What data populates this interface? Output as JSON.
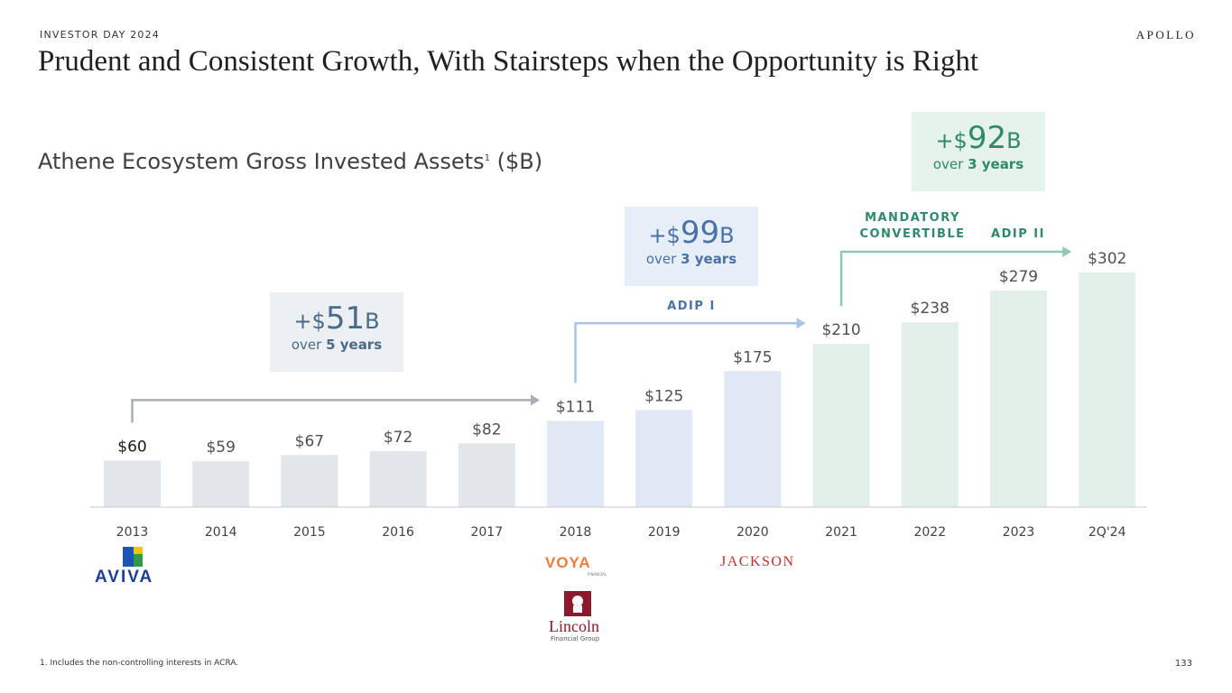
{
  "header": {
    "eyebrow": "INVESTOR DAY 2024",
    "brand": "APOLLO"
  },
  "title": "Prudent and Consistent Growth, With Stairsteps when the Opportunity is Right",
  "subtitle": {
    "text": "Athene Ecosystem Gross Invested Assets",
    "footnote_ref": "1",
    "unit": " ($B)"
  },
  "chart_data": {
    "type": "bar",
    "title": "Athene Ecosystem Gross Invested Assets ($B)",
    "categories": [
      "2013",
      "2014",
      "2015",
      "2016",
      "2017",
      "2018",
      "2019",
      "2020",
      "2021",
      "2022",
      "2023",
      "2Q'24"
    ],
    "values": [
      60,
      59,
      67,
      72,
      82,
      111,
      125,
      175,
      210,
      238,
      279,
      302
    ],
    "labels": [
      "$60",
      "$59",
      "$67",
      "$72",
      "$82",
      "$111",
      "$125",
      "$175",
      "$210",
      "$238",
      "$279",
      "$302"
    ],
    "ylim": [
      0,
      302
    ],
    "xlabel": "",
    "ylabel": "",
    "grid": false,
    "phase_colors": {
      "phase1": "#e1e6ea",
      "phase2": "#dfe8f4",
      "phase3": "#e3f0ea"
    },
    "phase_of_bar": [
      1,
      1,
      1,
      1,
      1,
      2,
      2,
      2,
      3,
      3,
      3,
      3
    ]
  },
  "callouts": [
    {
      "prefix": "+$",
      "num": "51",
      "suffix": "B",
      "line2_pre": "over ",
      "line2_bold": "5 years",
      "color": "#4a6a8a",
      "bg": "#edf0f3"
    },
    {
      "prefix": "+$",
      "num": "99",
      "suffix": "B",
      "line2_pre": "over ",
      "line2_bold": "3 years",
      "color": "#4a72a8",
      "bg": "#e6eef8"
    },
    {
      "prefix": "+$",
      "num": "92",
      "suffix": "B",
      "line2_pre": "over ",
      "line2_bold": "3 years",
      "color": "#2e8a68",
      "bg": "#e6f2ec"
    }
  ],
  "tags": {
    "adip1": "ADIP I",
    "mandatory1": "MANDATORY",
    "mandatory2": "CONVERTIBLE",
    "adip2": "ADIP II"
  },
  "colors": {
    "arrow1": "#a7aeb5",
    "arrow2": "#a9c4e6",
    "arrow3": "#8ec9b0",
    "tag_blue": "#4a72a8",
    "tag_green": "#2e8a68"
  },
  "logos": {
    "aviva": "AVIVA",
    "voya": "VOYA",
    "voya_sub": "FINANCIAL",
    "jackson": "JACKSON",
    "lincoln": "Lincoln",
    "lincoln_sub": "Financial Group"
  },
  "footnote": "1. Includes the non-controlling interests in ACRA.",
  "page_number": "133"
}
